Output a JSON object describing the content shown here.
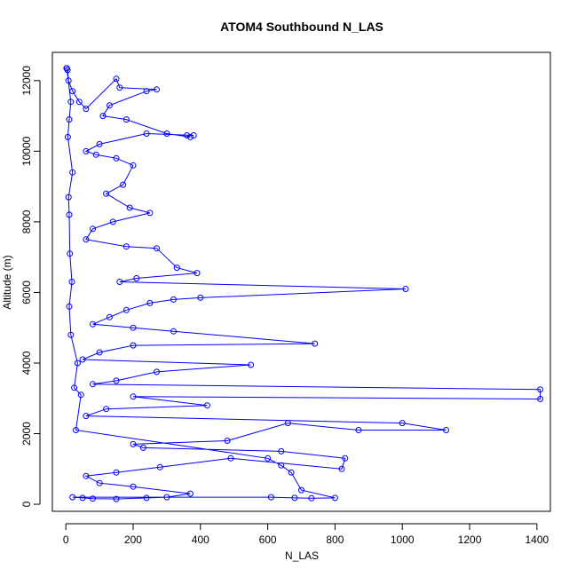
{
  "chart_data": {
    "type": "scatter",
    "title": "ATOM4 Southbound N_LAS",
    "xlabel": "N_LAS",
    "ylabel": "Altitude (m)",
    "xlim": [
      -40,
      1440
    ],
    "ylim": [
      -200,
      12800
    ],
    "x_ticks": [
      0,
      200,
      400,
      600,
      800,
      1000,
      1200,
      1400
    ],
    "y_ticks": [
      0,
      2000,
      4000,
      6000,
      8000,
      10000,
      12000
    ],
    "grid": false,
    "legend": "none",
    "series": [
      {
        "color": "#0000ff",
        "style": "points-and-lines",
        "marker": "open-circle",
        "points": [
          [
            2,
            12350
          ],
          [
            5,
            12300
          ],
          [
            8,
            12000
          ],
          [
            20,
            11700
          ],
          [
            40,
            11400
          ],
          [
            60,
            11200
          ],
          [
            150,
            12050
          ],
          [
            160,
            11800
          ],
          [
            270,
            11750
          ],
          [
            240,
            11700
          ],
          [
            130,
            11300
          ],
          [
            110,
            11000
          ],
          [
            180,
            10900
          ],
          [
            300,
            10500
          ],
          [
            370,
            10400
          ],
          [
            360,
            10450
          ],
          [
            380,
            10450
          ],
          [
            240,
            10500
          ],
          [
            100,
            10200
          ],
          [
            60,
            10000
          ],
          [
            90,
            9900
          ],
          [
            150,
            9800
          ],
          [
            200,
            9600
          ],
          [
            170,
            9050
          ],
          [
            120,
            8800
          ],
          [
            190,
            8400
          ],
          [
            250,
            8250
          ],
          [
            140,
            8000
          ],
          [
            80,
            7800
          ],
          [
            60,
            7500
          ],
          [
            180,
            7300
          ],
          [
            270,
            7250
          ],
          [
            330,
            6700
          ],
          [
            390,
            6550
          ],
          [
            210,
            6400
          ],
          [
            160,
            6300
          ],
          [
            1010,
            6100
          ],
          [
            400,
            5850
          ],
          [
            320,
            5800
          ],
          [
            250,
            5700
          ],
          [
            180,
            5500
          ],
          [
            130,
            5300
          ],
          [
            80,
            5100
          ],
          [
            200,
            5000
          ],
          [
            320,
            4900
          ],
          [
            740,
            4550
          ],
          [
            200,
            4500
          ],
          [
            100,
            4300
          ],
          [
            50,
            4100
          ],
          [
            550,
            3950
          ],
          [
            270,
            3750
          ],
          [
            150,
            3500
          ],
          [
            80,
            3400
          ],
          [
            1410,
            3250
          ],
          [
            1410,
            2980
          ],
          [
            200,
            3050
          ],
          [
            420,
            2800
          ],
          [
            120,
            2700
          ],
          [
            60,
            2500
          ],
          [
            1000,
            2300
          ],
          [
            1130,
            2100
          ],
          [
            870,
            2100
          ],
          [
            660,
            2300
          ],
          [
            480,
            1800
          ],
          [
            200,
            1700
          ],
          [
            230,
            1600
          ],
          [
            640,
            1500
          ],
          [
            830,
            1300
          ],
          [
            820,
            1000
          ],
          [
            490,
            1300
          ],
          [
            280,
            1050
          ],
          [
            150,
            900
          ],
          [
            60,
            800
          ],
          [
            100,
            600
          ],
          [
            200,
            500
          ],
          [
            370,
            300
          ],
          [
            300,
            200
          ],
          [
            240,
            180
          ],
          [
            150,
            150
          ],
          [
            80,
            160
          ],
          [
            50,
            180
          ],
          [
            20,
            200
          ],
          [
            610,
            200
          ],
          [
            680,
            180
          ],
          [
            730,
            170
          ],
          [
            800,
            180
          ],
          [
            700,
            400
          ],
          [
            670,
            900
          ],
          [
            640,
            1100
          ],
          [
            600,
            1300
          ],
          [
            30,
            2100
          ],
          [
            45,
            3100
          ],
          [
            25,
            3300
          ],
          [
            35,
            4000
          ],
          [
            15,
            4800
          ],
          [
            10,
            5600
          ],
          [
            18,
            6300
          ],
          [
            12,
            7100
          ],
          [
            10,
            8200
          ],
          [
            8,
            8700
          ],
          [
            20,
            9400
          ],
          [
            6,
            10400
          ],
          [
            10,
            10900
          ],
          [
            15,
            11400
          ],
          [
            3,
            12350
          ]
        ]
      }
    ]
  }
}
